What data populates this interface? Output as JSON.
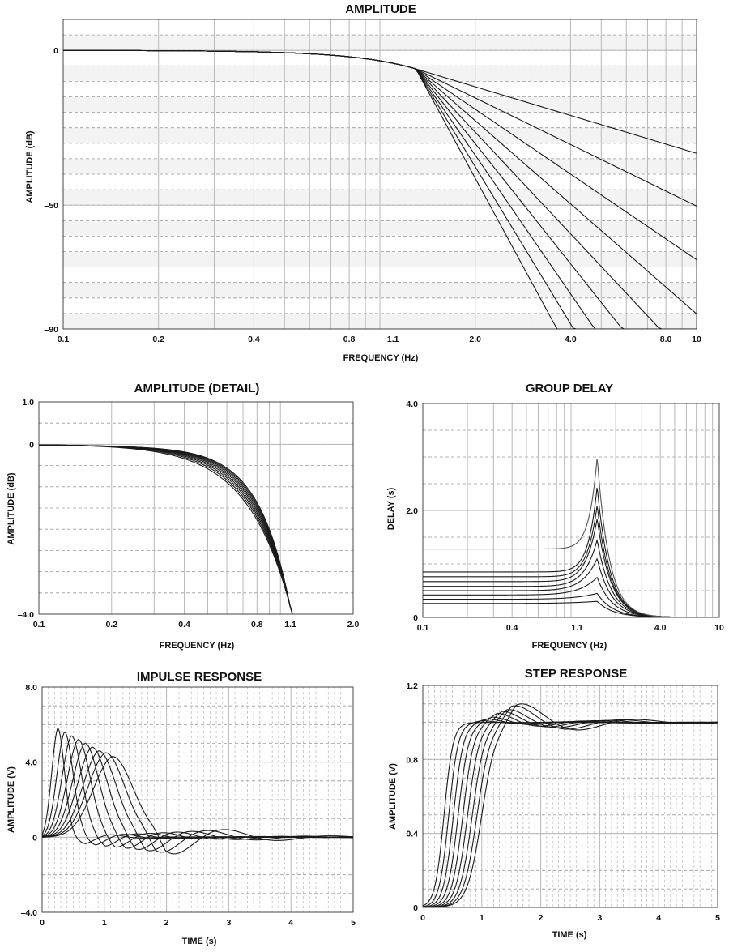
{
  "figure": {
    "panels": [
      {
        "id": "amplitude",
        "title": "AMPLITUDE",
        "xlabel": "FREQUENCY (Hz)",
        "ylabel": "AMPLITUDE (dB)"
      },
      {
        "id": "amplitude_detail",
        "title": "AMPLITUDE (DETAIL)",
        "xlabel": "FREQUENCY (Hz)",
        "ylabel": "AMPLITUDE (dB)"
      },
      {
        "id": "group_delay",
        "title": "GROUP DELAY",
        "xlabel": "FREQUENCY (Hz)",
        "ylabel": "DELAY (s)"
      },
      {
        "id": "impulse",
        "title": "IMPULSE RESPONSE",
        "xlabel": "TIME (s)",
        "ylabel": "AMPLITUDE (V)"
      },
      {
        "id": "step",
        "title": "STEP RESPONSE",
        "xlabel": "TIME (s)",
        "ylabel": "AMPLITUDE (V)"
      }
    ]
  },
  "chart_data": [
    {
      "id": "amplitude",
      "type": "line",
      "title": "AMPLITUDE",
      "xlabel": "FREQUENCY (Hz)",
      "ylabel": "AMPLITUDE (dB)",
      "xscale": "log",
      "xlim": [
        0.1,
        10
      ],
      "ylim": [
        -90,
        10
      ],
      "xticks": [
        0.1,
        0.2,
        0.4,
        0.8,
        1.1,
        2.0,
        4.0,
        8.0,
        10
      ],
      "xtick_labels": [
        "0.1",
        "0.2",
        "0.4",
        "0.8",
        "1.1",
        "2.0",
        "4.0",
        "8.0",
        "10"
      ],
      "yticks": [
        0,
        -50,
        -90
      ],
      "ytick_labels": [
        "0",
        "–50",
        "–90"
      ],
      "grid": true,
      "series_orders": [
        2,
        3,
        4,
        5,
        6,
        7,
        8,
        9,
        10
      ],
      "knee_hz": 1.3,
      "knee_db": -6,
      "slope_db_per_decade_per_order": 20
    },
    {
      "id": "amplitude_detail",
      "type": "line",
      "title": "AMPLITUDE (DETAIL)",
      "xlabel": "FREQUENCY (Hz)",
      "ylabel": "AMPLITUDE (dB)",
      "xscale": "log",
      "xlim": [
        0.1,
        2.0
      ],
      "ylim": [
        -4.0,
        1.0
      ],
      "xticks": [
        0.1,
        0.2,
        0.4,
        0.8,
        1.1,
        2.0
      ],
      "xtick_labels": [
        "0.1",
        "0.2",
        "0.4",
        "0.8",
        "1.1",
        "2.0"
      ],
      "yticks": [
        1.0,
        0,
        -4.0
      ],
      "ytick_labels": [
        "1.0",
        "0",
        "–4.0"
      ],
      "grid": true,
      "series_count": 9,
      "end_point": [
        1.12,
        -4.0
      ]
    },
    {
      "id": "group_delay",
      "type": "line",
      "title": "GROUP DELAY",
      "xlabel": "FREQUENCY (Hz)",
      "ylabel": "DELAY (s)",
      "xscale": "log",
      "xlim": [
        0.1,
        10
      ],
      "ylim": [
        0,
        4.0
      ],
      "xticks": [
        0.1,
        0.4,
        1.1,
        4.0,
        10
      ],
      "xtick_labels": [
        "0.1",
        "0.4",
        "1.1",
        "4.0",
        "10"
      ],
      "yticks": [
        0,
        2.0,
        4.0
      ],
      "ytick_labels": [
        "0",
        "2.0",
        "4.0"
      ],
      "grid": true,
      "low_freq_delays": [
        0.26,
        0.34,
        0.42,
        0.5,
        0.58,
        0.67,
        0.76,
        0.85,
        1.28
      ],
      "peak_delays": [
        0.3,
        0.45,
        0.75,
        1.1,
        1.45,
        1.85,
        2.1,
        2.45,
        3.0
      ],
      "peak_hz": 1.5
    },
    {
      "id": "impulse",
      "type": "line",
      "title": "IMPULSE RESPONSE",
      "xlabel": "TIME (s)",
      "ylabel": "AMPLITUDE (V)",
      "xlim": [
        0,
        5
      ],
      "ylim": [
        -4.0,
        8.0
      ],
      "xticks": [
        0,
        1,
        2,
        3,
        4,
        5
      ],
      "xtick_labels": [
        "0",
        "1",
        "2",
        "3",
        "4",
        "5"
      ],
      "yticks": [
        -4.0,
        0,
        4.0,
        8.0
      ],
      "ytick_labels": [
        "–4.0",
        "0",
        "4.0",
        "8.0"
      ],
      "grid": true,
      "peak_times": [
        0.25,
        0.36,
        0.47,
        0.58,
        0.69,
        0.8,
        0.91,
        1.02,
        1.13
      ],
      "peak_values": [
        5.8,
        5.6,
        5.4,
        5.2,
        5.0,
        4.8,
        4.6,
        4.5,
        4.3
      ]
    },
    {
      "id": "step",
      "type": "line",
      "title": "STEP RESPONSE",
      "xlabel": "TIME (s)",
      "ylabel": "AMPLITUDE (V)",
      "xlim": [
        0,
        5
      ],
      "ylim": [
        0,
        1.2
      ],
      "xticks": [
        0,
        1,
        2,
        3,
        4,
        5
      ],
      "xtick_labels": [
        "0",
        "1",
        "2",
        "3",
        "4",
        "5"
      ],
      "yticks": [
        0,
        0.4,
        0.8,
        1.2
      ],
      "ytick_labels": [
        "0",
        "0.4",
        "0.8",
        "1.2"
      ],
      "grid": true,
      "rise_centers": [
        0.36,
        0.44,
        0.52,
        0.6,
        0.68,
        0.76,
        0.84,
        0.92,
        1.0
      ],
      "overshoots": [
        1.0,
        1.01,
        1.02,
        1.03,
        1.05,
        1.06,
        1.07,
        1.09,
        1.1
      ]
    }
  ]
}
